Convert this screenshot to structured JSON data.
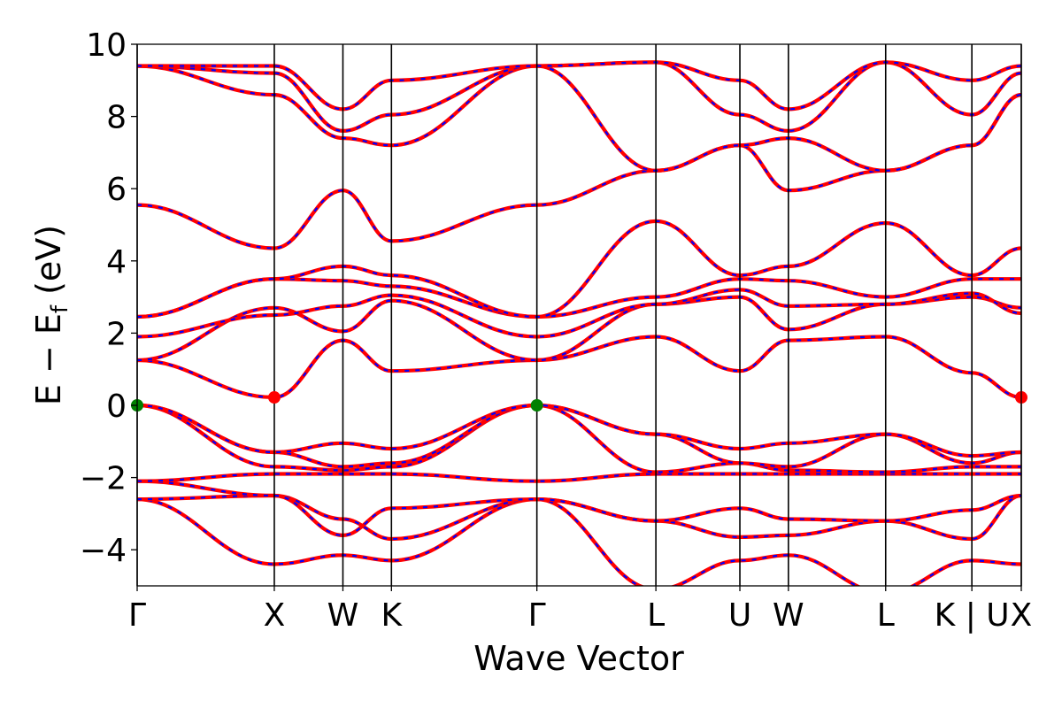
{
  "chart_data": {
    "type": "line",
    "title": "",
    "xlabel": "Wave Vector",
    "ylabel": "E − E",
    "ylabel_sub": "f",
    "ylabel_unit": " (eV)",
    "ylim": [
      -5,
      10
    ],
    "yticks": [
      {
        "value": -4,
        "label": "−4"
      },
      {
        "value": -2,
        "label": "−2"
      },
      {
        "value": 0,
        "label": "0"
      },
      {
        "value": 2,
        "label": "2"
      },
      {
        "value": 4,
        "label": "4"
      },
      {
        "value": 6,
        "label": "6"
      },
      {
        "value": 8,
        "label": "8"
      },
      {
        "value": 10,
        "label": "10"
      }
    ],
    "xlim": [
      0,
      1
    ],
    "kpoints": [
      {
        "label": "Γ",
        "x": 0.0
      },
      {
        "label": "X",
        "x": 0.1551
      },
      {
        "label": "W",
        "x": 0.2327
      },
      {
        "label": "K",
        "x": 0.2876
      },
      {
        "label": "Γ",
        "x": 0.4521
      },
      {
        "label": "L",
        "x": 0.5867
      },
      {
        "label": "U",
        "x": 0.6817
      },
      {
        "label": "W",
        "x": 0.7366
      },
      {
        "label": "L",
        "x": 0.8466
      },
      {
        "label": "K | U",
        "x": 0.9441
      },
      {
        "label": "X",
        "x": 1.0
      }
    ],
    "band_colors": {
      "line": "#ff0000",
      "dash": "#0000ff"
    },
    "extrema_points": [
      {
        "kind": "VBM",
        "x": 0.0,
        "y": 0.0,
        "color": "#008000"
      },
      {
        "kind": "VBM",
        "x": 0.4521,
        "y": 0.0,
        "color": "#008000"
      },
      {
        "kind": "CBM",
        "x": 0.1551,
        "y": 0.22,
        "color": "#ff0000"
      },
      {
        "kind": "CBM",
        "x": 1.0,
        "y": 0.22,
        "color": "#ff0000"
      }
    ],
    "bands": [
      {
        "y": [
          -2.6,
          -4.4,
          -4.15,
          -4.3,
          -2.6,
          -5.1,
          -4.3,
          -4.15,
          -5.2,
          -4.3,
          -4.4
        ]
      },
      {
        "y": [
          -2.6,
          -2.5,
          -3.15,
          -3.7,
          -2.6,
          -3.2,
          -3.65,
          -3.6,
          -3.2,
          -3.7,
          -2.5
        ]
      },
      {
        "y": [
          -2.1,
          -2.5,
          -3.6,
          -2.85,
          -2.6,
          -3.2,
          -2.85,
          -3.15,
          -3.2,
          -2.9,
          -2.5
        ]
      },
      {
        "y": [
          -2.1,
          -1.9,
          -1.9,
          -1.9,
          -2.1,
          -1.9,
          -1.9,
          -1.9,
          -1.9,
          -1.9,
          -1.9
        ]
      },
      {
        "y": [
          0.0,
          -1.7,
          -1.8,
          -1.7,
          0.0,
          -1.85,
          -1.6,
          -1.8,
          -1.85,
          -1.7,
          -1.7
        ]
      },
      {
        "y": [
          0.0,
          -1.3,
          -1.7,
          -1.6,
          0.0,
          -0.8,
          -1.6,
          -1.7,
          -0.8,
          -1.6,
          -1.3
        ]
      },
      {
        "y": [
          0.0,
          -1.3,
          -1.05,
          -1.2,
          0.0,
          -0.8,
          -1.2,
          -1.05,
          -0.8,
          -1.4,
          -1.3
        ]
      },
      {
        "y": [
          1.25,
          0.22,
          1.8,
          0.95,
          1.25,
          1.9,
          0.95,
          1.8,
          1.9,
          0.9,
          0.22
        ]
      },
      {
        "y": [
          1.25,
          2.7,
          2.05,
          2.9,
          1.25,
          2.8,
          3.0,
          2.1,
          2.8,
          3.0,
          2.7
        ]
      },
      {
        "y": [
          1.9,
          2.5,
          2.75,
          3.05,
          1.9,
          2.8,
          3.2,
          2.75,
          2.8,
          3.1,
          2.55
        ]
      },
      {
        "y": [
          2.45,
          3.5,
          3.45,
          3.3,
          2.45,
          3.0,
          3.5,
          3.45,
          3.0,
          3.5,
          3.5
        ]
      },
      {
        "y": [
          2.45,
          3.5,
          3.85,
          3.6,
          2.45,
          5.1,
          3.6,
          3.85,
          5.05,
          3.6,
          4.35
        ]
      },
      {
        "y": [
          5.55,
          4.35,
          5.95,
          4.55,
          5.55,
          6.5,
          7.2,
          5.95,
          6.5,
          7.2,
          8.6
        ]
      },
      {
        "y": [
          9.4,
          8.6,
          7.4,
          7.2,
          9.4,
          6.5,
          7.2,
          7.4,
          6.5,
          7.2,
          8.6
        ]
      },
      {
        "y": [
          9.4,
          9.2,
          7.6,
          8.05,
          9.4,
          9.5,
          8.05,
          7.6,
          9.5,
          8.05,
          9.2
        ]
      },
      {
        "y": [
          9.4,
          9.4,
          8.2,
          9.0,
          9.4,
          9.5,
          9.0,
          8.2,
          9.5,
          9.0,
          9.4
        ]
      }
    ]
  }
}
